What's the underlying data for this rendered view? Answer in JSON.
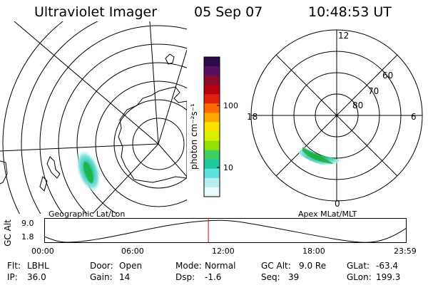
{
  "header": {
    "instrument": "Ultraviolet Imager",
    "date": "05 Sep 07",
    "time": "10:48:53 UT"
  },
  "left_panel": {
    "caption": "Geographic Lat/Lon"
  },
  "right_panel": {
    "caption": "Apex MLat/MLT",
    "mlt_labels": {
      "top": "12",
      "bottom": "0",
      "left": "18",
      "right": "6"
    },
    "lat_labels": [
      "60",
      "70",
      "80"
    ]
  },
  "colorbar": {
    "unit_label": "photon cm⁻²s⁻¹",
    "ticks": [
      "100",
      "10"
    ],
    "colors": [
      "#2a0a4a",
      "#5a1060",
      "#8a0a30",
      "#b80010",
      "#e02010",
      "#ff6a00",
      "#ffa800",
      "#ffe000",
      "#d8f000",
      "#90e000",
      "#40d060",
      "#20c8a0",
      "#60e0e0",
      "#b8f0f0",
      "#e8fafa"
    ]
  },
  "altitude_plot": {
    "ylabel": "GC Alt",
    "yticks": [
      "9.0",
      "1.8"
    ],
    "xticks": [
      "00:00",
      "06:00",
      "12:00",
      "18:00",
      "23:59"
    ],
    "current_time_fraction": 0.453,
    "marker_color": "#e00000"
  },
  "metadata": {
    "filter_label": "Flt:",
    "filter_value": "LBHL",
    "door_label": "Door:",
    "door_value": "Open",
    "mode_label": "Mode:",
    "mode_value": "Normal",
    "gcalt_label": "GC Alt:",
    "gcalt_value": "9.0 Re",
    "glat_label": "GLat:",
    "glat_value": "-63.4",
    "ip_label": "IP:",
    "ip_value": "36.0",
    "gain_label": "Gain:",
    "gain_value": "14",
    "dsp_label": "Dsp:",
    "dsp_value": "-1.6",
    "seq_label": "Seq:",
    "seq_value": "39",
    "glon_label": "GLon:",
    "glon_value": "199.3"
  }
}
